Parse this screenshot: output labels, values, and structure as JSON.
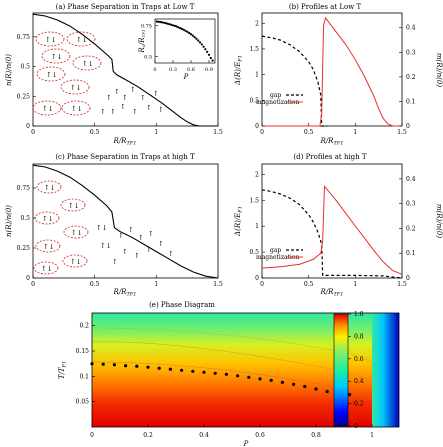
{
  "chart_data": [
    {
      "id": "a",
      "type": "line",
      "title": "(a) Phase Separation in Traps at Low T",
      "xlabel": "R/R_TF1",
      "ylabel": "n(R)/n(0)",
      "xlim": [
        0,
        1.5
      ],
      "ylim": [
        0,
        0.95
      ],
      "xticks": [
        "0",
        "0.5",
        "1",
        "1.5"
      ],
      "yticks": [
        "0",
        "0.25",
        "0.5",
        "0.75"
      ],
      "series": [
        {
          "x": [
            0,
            0.1,
            0.2,
            0.3,
            0.4,
            0.5,
            0.6,
            0.64,
            0.65,
            0.68,
            0.75,
            0.85,
            0.95,
            1.05,
            1.15,
            1.2,
            1.25,
            1.3,
            1.35,
            1.5
          ],
          "y": [
            0.94,
            0.925,
            0.89,
            0.84,
            0.77,
            0.69,
            0.6,
            0.56,
            0.46,
            0.43,
            0.39,
            0.33,
            0.26,
            0.19,
            0.11,
            0.07,
            0.035,
            0.01,
            0.0,
            0.0
          ]
        }
      ],
      "inset": {
        "xlabel": "P",
        "ylabel": "R_c/R_TF1",
        "xlim": [
          0,
          1
        ],
        "ylim": [
          0.45,
          0.8
        ],
        "xticks": [
          "0",
          "0.3",
          "0.6",
          "0.9"
        ],
        "yticks": [
          "0.5",
          "0.75"
        ],
        "points": {
          "x": [
            0.03,
            0.06,
            0.09,
            0.12,
            0.15,
            0.18,
            0.21,
            0.24,
            0.27,
            0.3,
            0.33,
            0.36,
            0.39,
            0.42,
            0.45,
            0.48,
            0.51,
            0.54,
            0.57,
            0.6,
            0.63,
            0.66,
            0.69,
            0.72,
            0.75,
            0.78,
            0.81,
            0.84,
            0.87,
            0.9,
            0.93,
            0.96
          ],
          "y": [
            0.78,
            0.778,
            0.776,
            0.773,
            0.77,
            0.767,
            0.763,
            0.759,
            0.755,
            0.75,
            0.745,
            0.74,
            0.734,
            0.728,
            0.721,
            0.714,
            0.706,
            0.698,
            0.689,
            0.679,
            0.668,
            0.656,
            0.643,
            0.629,
            0.614,
            0.598,
            0.58,
            0.56,
            0.538,
            0.515,
            0.49,
            0.47
          ]
        }
      }
    },
    {
      "id": "b",
      "type": "line",
      "title": "(b) Profiles at Low T",
      "xlabel": "R/R_TF1",
      "ylabel": "Δ(R)/E_F1",
      "y2label": "m(R)/n(0)",
      "xlim": [
        0,
        1.5
      ],
      "ylim": [
        0,
        2.2
      ],
      "y2lim": [
        0,
        0.46
      ],
      "xticks": [
        "0",
        "0.5",
        "1",
        "1.5"
      ],
      "yticks": [
        "0",
        "0.5",
        "1",
        "1.5",
        "2"
      ],
      "y2ticks": [
        "0",
        "0.1",
        "0.2",
        "0.3",
        "0.4"
      ],
      "legend": [
        "gap",
        "magnetization"
      ],
      "series": [
        {
          "name": "gap",
          "style": "dashed",
          "color": "#000000",
          "x": [
            0,
            0.1,
            0.2,
            0.3,
            0.4,
            0.5,
            0.55,
            0.6,
            0.63,
            0.64,
            0.66,
            0.7
          ],
          "y": [
            1.75,
            1.72,
            1.67,
            1.58,
            1.45,
            1.25,
            1.1,
            0.85,
            0.6,
            0.0,
            0.0,
            0.0
          ]
        },
        {
          "name": "magnetization",
          "style": "solid",
          "color": "#e8302a",
          "x": [
            0,
            0.62,
            0.64,
            0.66,
            0.68,
            0.8,
            0.9,
            1.0,
            1.1,
            1.2,
            1.25,
            1.3,
            1.35,
            1.4,
            1.5
          ],
          "y": [
            0,
            0,
            0.05,
            0.41,
            0.44,
            0.38,
            0.33,
            0.27,
            0.2,
            0.12,
            0.07,
            0.03,
            0.008,
            0,
            0
          ]
        }
      ]
    },
    {
      "id": "c",
      "type": "line",
      "title": "(c) Phase Separation in Traps at high T",
      "xlabel": "R/R_TF1",
      "ylabel": "n(R)/n(0)",
      "xlim": [
        0,
        1.5
      ],
      "ylim": [
        0,
        0.95
      ],
      "xticks": [
        "0",
        "0.5",
        "1",
        "1.5"
      ],
      "yticks": [
        "0",
        "0.25",
        "0.5",
        "0.75"
      ],
      "series": [
        {
          "x": [
            0,
            0.1,
            0.2,
            0.3,
            0.4,
            0.5,
            0.6,
            0.64,
            0.66,
            0.7,
            0.8,
            0.9,
            1.0,
            1.1,
            1.2,
            1.3,
            1.4,
            1.5
          ],
          "y": [
            0.94,
            0.925,
            0.89,
            0.84,
            0.77,
            0.69,
            0.6,
            0.55,
            0.42,
            0.39,
            0.34,
            0.28,
            0.22,
            0.16,
            0.1,
            0.05,
            0.015,
            0.0
          ]
        }
      ]
    },
    {
      "id": "d",
      "type": "line",
      "title": "(d) Profiles at high T",
      "xlabel": "R/R_TF1",
      "ylabel": "Δ(R)/E_F1",
      "y2label": "m(R)/n(0)",
      "xlim": [
        0,
        1.5
      ],
      "ylim": [
        0,
        2.2
      ],
      "y2lim": [
        0,
        0.46
      ],
      "xticks": [
        "0",
        "0.5",
        "1",
        "1.5"
      ],
      "yticks": [
        "0",
        "0.5",
        "1",
        "1.5",
        "2"
      ],
      "y2ticks": [
        "0",
        "0.1",
        "0.2",
        "0.3",
        "0.4"
      ],
      "legend": [
        "gap",
        "magnetization"
      ],
      "series": [
        {
          "name": "gap",
          "style": "dashed",
          "color": "#000000",
          "x": [
            0,
            0.1,
            0.2,
            0.3,
            0.4,
            0.5,
            0.55,
            0.6,
            0.64,
            0.65,
            0.7,
            1.0,
            1.3,
            1.45,
            1.5
          ],
          "y": [
            1.7,
            1.67,
            1.62,
            1.54,
            1.42,
            1.22,
            1.08,
            0.88,
            0.65,
            0.05,
            0.05,
            0.05,
            0.04,
            0.01,
            0.0
          ]
        },
        {
          "name": "magnetization",
          "style": "solid",
          "color": "#e8302a",
          "x": [
            0,
            0.2,
            0.4,
            0.55,
            0.63,
            0.65,
            0.67,
            0.8,
            0.9,
            1.0,
            1.1,
            1.2,
            1.3,
            1.4,
            1.5
          ],
          "y": [
            0.04,
            0.045,
            0.055,
            0.075,
            0.1,
            0.15,
            0.37,
            0.31,
            0.26,
            0.21,
            0.16,
            0.11,
            0.065,
            0.03,
            0.015
          ]
        }
      ]
    },
    {
      "id": "e",
      "type": "heatmap",
      "title": "(e) Phase Diagram",
      "xlabel": "P",
      "ylabel": "T/T_F1",
      "xlim": [
        0,
        1
      ],
      "ylim": [
        0,
        0.225
      ],
      "xticks": [
        "0",
        "0.2",
        "0.4",
        "0.6",
        "0.8",
        "1"
      ],
      "yticks": [
        "0.05",
        "0.1",
        "0.15",
        "0.2"
      ],
      "colorbar": {
        "range": [
          0,
          1
        ],
        "ticks": [
          "0",
          "0.2",
          "0.4",
          "0.6",
          "0.8",
          "1.0"
        ]
      },
      "boundary_points": {
        "x": [
          0.0,
          0.04,
          0.08,
          0.12,
          0.16,
          0.2,
          0.24,
          0.28,
          0.32,
          0.36,
          0.4,
          0.44,
          0.48,
          0.52,
          0.56,
          0.6,
          0.64,
          0.68,
          0.72,
          0.76,
          0.8,
          0.84,
          0.88,
          0.92
        ],
        "y": [
          0.125,
          0.124,
          0.123,
          0.121,
          0.12,
          0.118,
          0.116,
          0.114,
          0.112,
          0.11,
          0.108,
          0.106,
          0.104,
          0.101,
          0.098,
          0.095,
          0.092,
          0.088,
          0.084,
          0.08,
          0.075,
          0.07,
          0.066,
          0.064
        ]
      }
    }
  ]
}
